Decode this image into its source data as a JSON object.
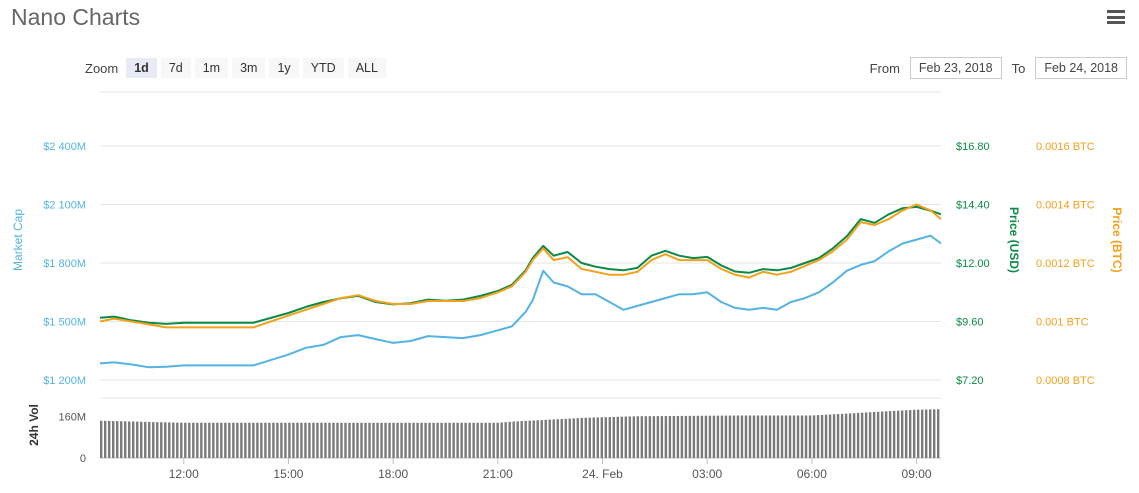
{
  "header": {
    "title": "Nano Charts",
    "menu_icon": "hamburger-menu-icon"
  },
  "zoom": {
    "label": "Zoom",
    "buttons": [
      "1d",
      "7d",
      "1m",
      "3m",
      "1y",
      "YTD",
      "ALL"
    ],
    "active": "1d"
  },
  "range": {
    "from_label": "From",
    "from_value": "Feb 23, 2018",
    "to_label": "To",
    "to_value": "Feb 24, 2018"
  },
  "colors": {
    "market_cap": "#55b3e3",
    "price_usd": "#0b8a47",
    "price_btc": "#f2a11c",
    "volume": "#7a7a7a"
  },
  "chart_data": {
    "type": "line",
    "x_tick_labels": [
      "12:00",
      "15:00",
      "18:00",
      "21:00",
      "24. Feb",
      "03:00",
      "06:00",
      "09:00"
    ],
    "x_ticks_hours": [
      12,
      15,
      18,
      21,
      24,
      27,
      30,
      33
    ],
    "x_range_hours": [
      9.6,
      33.7
    ],
    "axes": {
      "market_cap": {
        "title": "Market Cap",
        "ticks": [
          "$1 200M",
          "$1 500M",
          "$1 800M",
          "$2 100M",
          "$2 400M"
        ],
        "range": [
          1200,
          2400
        ],
        "unit": "M USD"
      },
      "price_usd": {
        "title": "Price (USD)",
        "ticks": [
          "$7.20",
          "$9.60",
          "$12.00",
          "$14.40",
          "$16.80"
        ],
        "range": [
          7.2,
          16.8
        ]
      },
      "price_btc": {
        "title": "Price (BTC)",
        "ticks": [
          "0.0008 BTC",
          "0.001 BTC",
          "0.0012 BTC",
          "0.0014 BTC",
          "0.0016 BTC"
        ],
        "range": [
          0.0008,
          0.0016
        ]
      },
      "volume": {
        "title": "24h Vol",
        "ticks": [
          "0",
          "160M"
        ],
        "range": [
          0,
          230
        ]
      }
    },
    "series": [
      {
        "key": "market_cap",
        "axis": "market_cap",
        "x": [
          9.6,
          10.0,
          10.5,
          11.0,
          11.5,
          12.0,
          12.5,
          13.0,
          14.0,
          15.0,
          15.5,
          16.0,
          16.5,
          17.0,
          17.5,
          18.0,
          18.5,
          19.0,
          19.5,
          20.0,
          20.5,
          21.0,
          21.4,
          21.8,
          22.0,
          22.3,
          22.6,
          23.0,
          23.4,
          23.8,
          24.2,
          24.6,
          25.0,
          25.4,
          25.8,
          26.2,
          26.6,
          27.0,
          27.4,
          27.8,
          28.2,
          28.6,
          29.0,
          29.4,
          29.8,
          30.2,
          30.6,
          31.0,
          31.4,
          31.8,
          32.2,
          32.6,
          33.0,
          33.4,
          33.7
        ],
        "values": [
          1285,
          1290,
          1280,
          1265,
          1268,
          1275,
          1275,
          1275,
          1275,
          1330,
          1365,
          1380,
          1420,
          1430,
          1410,
          1390,
          1400,
          1425,
          1420,
          1415,
          1430,
          1455,
          1475,
          1550,
          1610,
          1760,
          1700,
          1680,
          1640,
          1640,
          1600,
          1560,
          1580,
          1600,
          1620,
          1640,
          1640,
          1650,
          1600,
          1570,
          1560,
          1570,
          1560,
          1600,
          1620,
          1650,
          1700,
          1760,
          1790,
          1810,
          1860,
          1900,
          1920,
          1940,
          1900
        ]
      },
      {
        "key": "price_usd",
        "axis": "price_usd",
        "x": [
          9.6,
          10.0,
          10.5,
          11.0,
          11.5,
          12.0,
          12.5,
          13.0,
          14.0,
          15.0,
          15.5,
          16.0,
          16.5,
          17.0,
          17.5,
          18.0,
          18.5,
          19.0,
          19.5,
          20.0,
          20.5,
          21.0,
          21.4,
          21.8,
          22.0,
          22.3,
          22.6,
          23.0,
          23.4,
          23.8,
          24.2,
          24.6,
          25.0,
          25.4,
          25.8,
          26.2,
          26.6,
          27.0,
          27.4,
          27.8,
          28.2,
          28.6,
          29.0,
          29.4,
          29.8,
          30.2,
          30.6,
          31.0,
          31.4,
          31.8,
          32.2,
          32.6,
          33.0,
          33.4,
          33.7
        ],
        "values": [
          9.75,
          9.8,
          9.65,
          9.55,
          9.5,
          9.55,
          9.55,
          9.55,
          9.55,
          9.95,
          10.2,
          10.4,
          10.55,
          10.65,
          10.4,
          10.3,
          10.35,
          10.5,
          10.45,
          10.5,
          10.65,
          10.85,
          11.1,
          11.7,
          12.2,
          12.7,
          12.3,
          12.45,
          12.0,
          11.85,
          11.75,
          11.7,
          11.8,
          12.3,
          12.5,
          12.3,
          12.2,
          12.25,
          11.9,
          11.65,
          11.6,
          11.75,
          11.7,
          11.8,
          12.0,
          12.2,
          12.6,
          13.1,
          13.8,
          13.65,
          14.0,
          14.25,
          14.3,
          14.15,
          14.0
        ]
      },
      {
        "key": "price_btc",
        "axis": "price_btc",
        "x": [
          9.6,
          10.0,
          10.5,
          11.0,
          11.5,
          12.0,
          12.5,
          13.0,
          14.0,
          15.0,
          15.5,
          16.0,
          16.5,
          17.0,
          17.5,
          18.0,
          18.5,
          19.0,
          19.5,
          20.0,
          20.5,
          21.0,
          21.4,
          21.8,
          22.0,
          22.3,
          22.6,
          23.0,
          23.4,
          23.8,
          24.2,
          24.6,
          25.0,
          25.4,
          25.8,
          26.2,
          26.6,
          27.0,
          27.4,
          27.8,
          28.2,
          28.6,
          29.0,
          29.4,
          29.8,
          30.2,
          30.6,
          31.0,
          31.4,
          31.8,
          32.2,
          32.6,
          33.0,
          33.4,
          33.7
        ],
        "values": [
          0.001,
          0.00101,
          0.001,
          0.00099,
          0.00098,
          0.00098,
          0.00098,
          0.00098,
          0.00098,
          0.00102,
          0.00104,
          0.00106,
          0.00108,
          0.00109,
          0.00107,
          0.00106,
          0.00106,
          0.00107,
          0.00107,
          0.00107,
          0.00108,
          0.0011,
          0.00112,
          0.00117,
          0.00121,
          0.00125,
          0.00121,
          0.00122,
          0.00118,
          0.00117,
          0.00116,
          0.00116,
          0.00117,
          0.00121,
          0.00123,
          0.00121,
          0.00121,
          0.00121,
          0.00118,
          0.00116,
          0.00115,
          0.00117,
          0.00116,
          0.00117,
          0.00119,
          0.00121,
          0.00124,
          0.00128,
          0.00134,
          0.00133,
          0.00135,
          0.00138,
          0.0014,
          0.00138,
          0.00135
        ]
      },
      {
        "key": "volume",
        "axis": "volume",
        "type": "bar",
        "x": [
          9.6,
          12.0,
          21.0,
          21.5,
          22.5,
          23.5,
          25.0,
          28.0,
          30.0,
          31.0,
          32.0,
          33.0,
          33.7
        ],
        "values": [
          143,
          135,
          135,
          140,
          147,
          154,
          160,
          163,
          163,
          170,
          178,
          185,
          187
        ]
      }
    ]
  }
}
